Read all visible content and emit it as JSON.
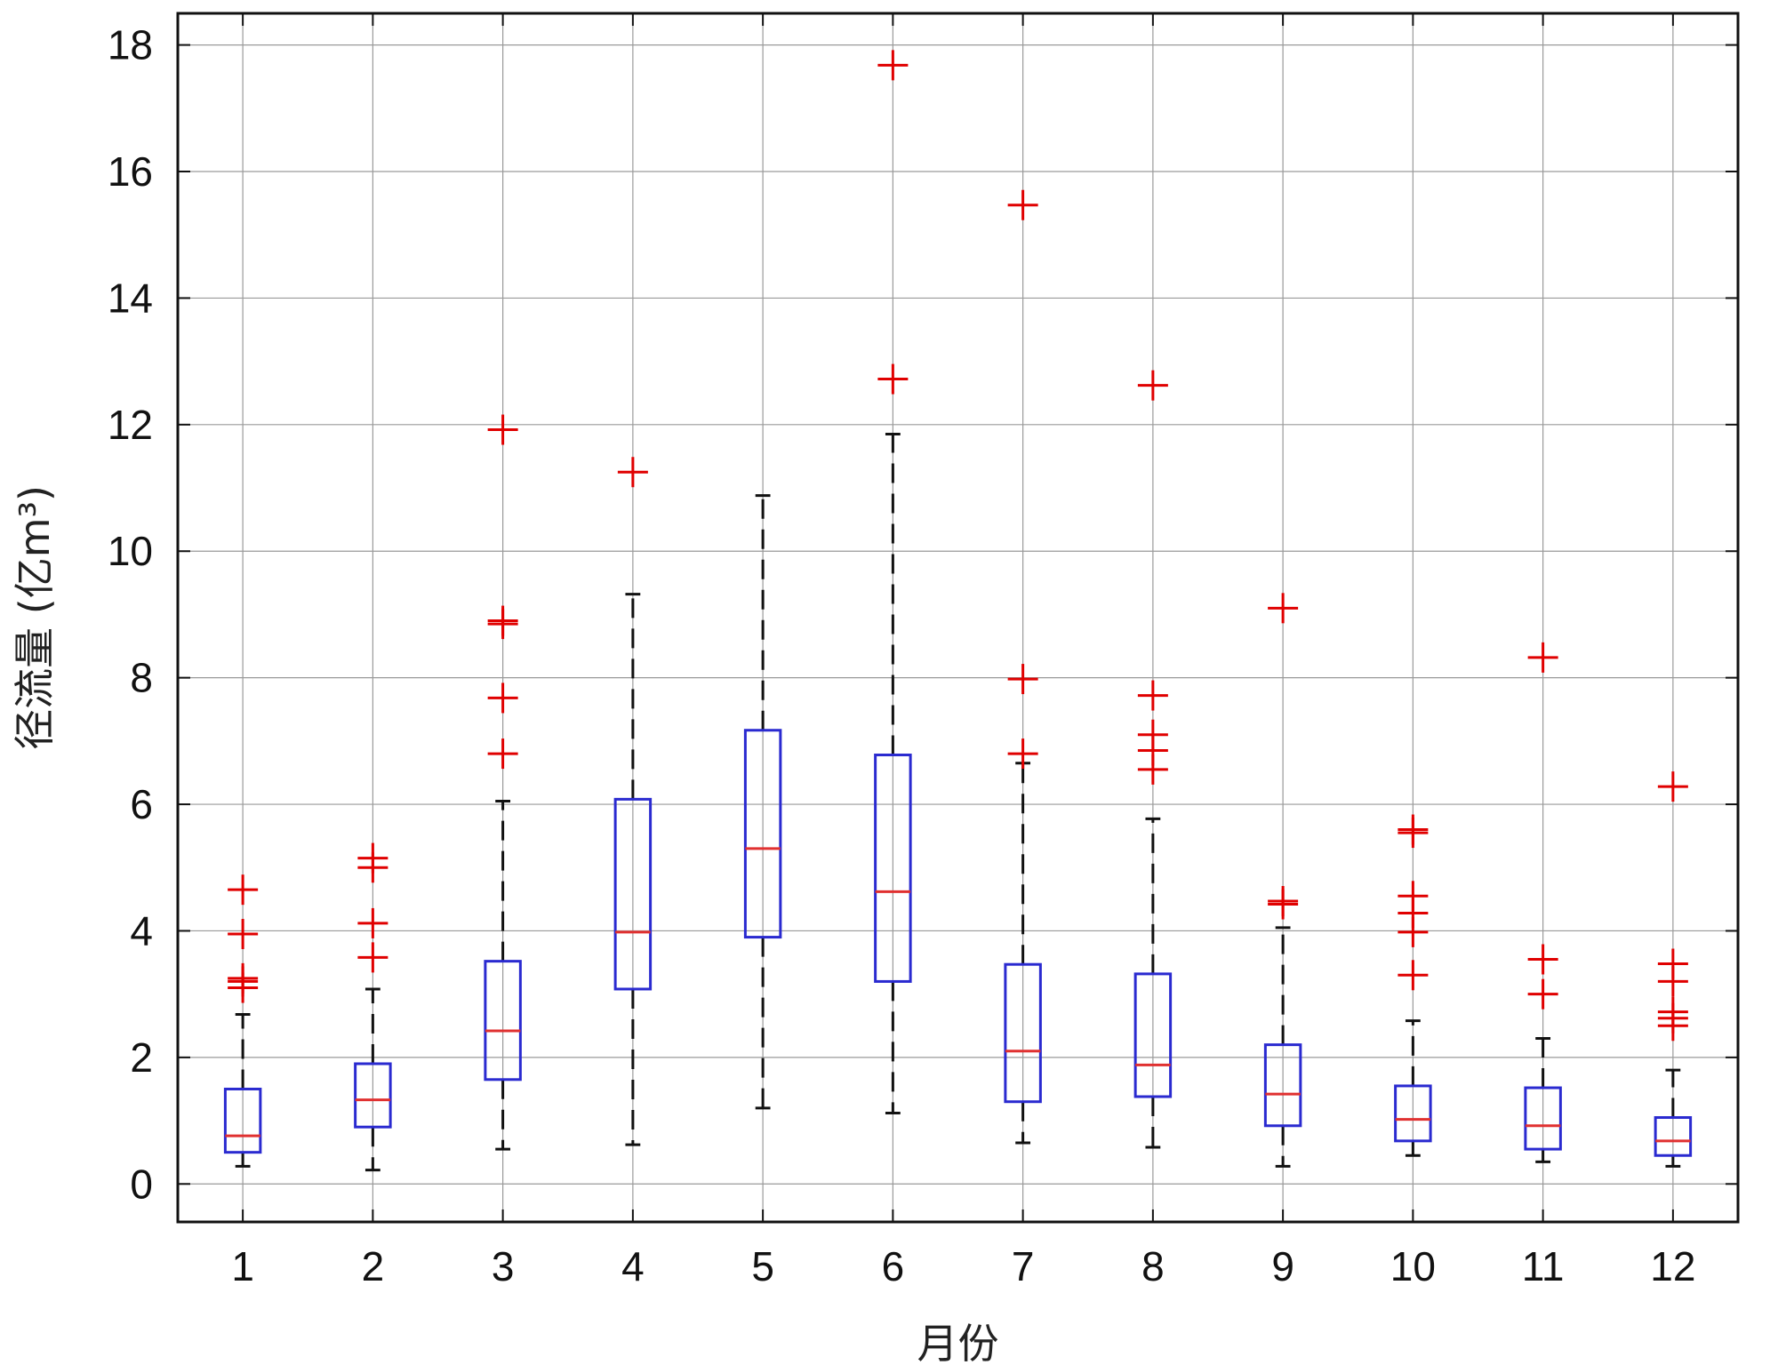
{
  "chart_data": {
    "type": "box",
    "title": "",
    "xlabel": "月份",
    "ylabel": "径流量 (亿m³)",
    "ylim": [
      -0.6,
      18.5
    ],
    "yticks": [
      0,
      2,
      4,
      6,
      8,
      10,
      12,
      14,
      16,
      18
    ],
    "grid": true,
    "colors": {
      "box": "#2a2ad0",
      "median": "#e03030",
      "whisker": "#111111",
      "outlier": "#e00000",
      "grid": "#9a9a9a"
    },
    "categories": [
      "1",
      "2",
      "3",
      "4",
      "5",
      "6",
      "7",
      "8",
      "9",
      "10",
      "11",
      "12"
    ],
    "boxes": [
      {
        "month": "1",
        "whisker_low": 0.28,
        "q1": 0.5,
        "median": 0.76,
        "q3": 1.5,
        "whisker_high": 2.68,
        "outliers": [
          3.1,
          3.2,
          3.25,
          3.95,
          4.65
        ]
      },
      {
        "month": "2",
        "whisker_low": 0.22,
        "q1": 0.9,
        "median": 1.33,
        "q3": 1.9,
        "whisker_high": 3.08,
        "outliers": [
          3.58,
          4.12,
          5.0,
          5.15
        ]
      },
      {
        "month": "3",
        "whisker_low": 0.55,
        "q1": 1.65,
        "median": 2.42,
        "q3": 3.52,
        "whisker_high": 6.05,
        "outliers": [
          6.8,
          7.68,
          8.85,
          8.9,
          11.92
        ]
      },
      {
        "month": "4",
        "whisker_low": 0.62,
        "q1": 3.08,
        "median": 3.98,
        "q3": 6.08,
        "whisker_high": 9.32,
        "outliers": [
          11.25
        ]
      },
      {
        "month": "5",
        "whisker_low": 1.2,
        "q1": 3.9,
        "median": 5.3,
        "q3": 7.17,
        "whisker_high": 10.88,
        "outliers": []
      },
      {
        "month": "6",
        "whisker_low": 1.12,
        "q1": 3.2,
        "median": 4.62,
        "q3": 6.78,
        "whisker_high": 11.85,
        "outliers": [
          12.72,
          17.68
        ]
      },
      {
        "month": "7",
        "whisker_low": 0.65,
        "q1": 1.3,
        "median": 2.1,
        "q3": 3.47,
        "whisker_high": 6.65,
        "outliers": [
          6.8,
          7.98,
          15.47
        ]
      },
      {
        "month": "8",
        "whisker_low": 0.58,
        "q1": 1.38,
        "median": 1.88,
        "q3": 3.32,
        "whisker_high": 5.77,
        "outliers": [
          6.55,
          6.85,
          7.1,
          7.72,
          12.62
        ]
      },
      {
        "month": "9",
        "whisker_low": 0.28,
        "q1": 0.92,
        "median": 1.42,
        "q3": 2.2,
        "whisker_high": 4.05,
        "outliers": [
          4.42,
          4.47,
          9.1
        ]
      },
      {
        "month": "10",
        "whisker_low": 0.45,
        "q1": 0.68,
        "median": 1.02,
        "q3": 1.55,
        "whisker_high": 2.58,
        "outliers": [
          3.3,
          3.98,
          4.28,
          4.55,
          5.55,
          5.6
        ]
      },
      {
        "month": "11",
        "whisker_low": 0.35,
        "q1": 0.55,
        "median": 0.92,
        "q3": 1.52,
        "whisker_high": 2.3,
        "outliers": [
          3.0,
          3.55,
          8.32
        ]
      },
      {
        "month": "12",
        "whisker_low": 0.28,
        "q1": 0.45,
        "median": 0.68,
        "q3": 1.05,
        "whisker_high": 1.8,
        "outliers": [
          2.5,
          2.62,
          2.72,
          3.2,
          3.48,
          6.28
        ]
      }
    ]
  }
}
